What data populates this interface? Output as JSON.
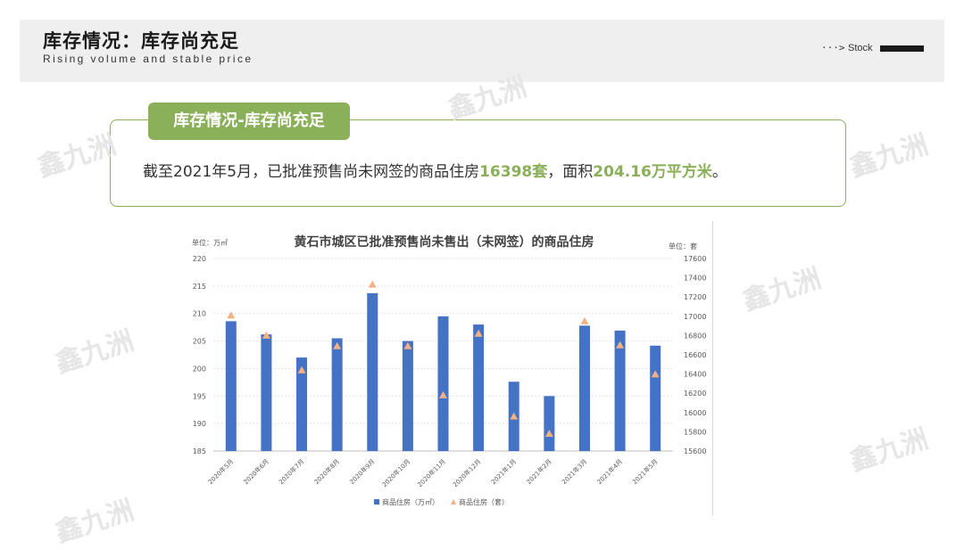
{
  "header": {
    "title": "库存情况：库存尚充足",
    "subtitle": "Rising volume and stable price",
    "arrow": "···>",
    "nav_label": "Stock"
  },
  "info": {
    "tag": "库存情况-库存尚充足",
    "text_prefix": "截至2021年5月，已批准预售尚未网签的商品住房",
    "highlight_units": "16398套",
    "text_middle": "，面积",
    "highlight_area": "204.16万平方米",
    "text_suffix": "。"
  },
  "watermark": "鑫九洲",
  "colors": {
    "accent_green": "#8ab05a",
    "bar_blue": "#4472c4",
    "triangle_orange": "#f4b183"
  },
  "chart_data": {
    "type": "bar",
    "title": "黄石市城区已批准预售尚未售出（未网签）的商品住房",
    "ylabel_left": "单位：万㎡",
    "ylabel_right": "单位：套",
    "categories": [
      "2020年5月",
      "2020年6月",
      "2020年7月",
      "2020年8月",
      "2020年9月",
      "2020年10月",
      "2020年11月",
      "2020年12月",
      "2021年1月",
      "2021年2月",
      "2021年3月",
      "2021年4月",
      "2021年5月"
    ],
    "ylim_left": [
      185,
      220
    ],
    "yticks_left": [
      185,
      190,
      195,
      200,
      205,
      210,
      215,
      220
    ],
    "ylim_right": [
      15600,
      17600
    ],
    "yticks_right": [
      15600,
      15800,
      16000,
      16200,
      16400,
      16600,
      16800,
      17000,
      17200,
      17400,
      17600
    ],
    "grid": true,
    "legend_position": "bottom",
    "series": [
      {
        "name": "商品住房（万㎡）",
        "type": "bar",
        "axis": "left",
        "values": [
          208.6,
          206.2,
          202.0,
          205.5,
          213.7,
          205.0,
          209.5,
          208.0,
          197.6,
          195.0,
          207.8,
          206.9,
          204.16
        ]
      },
      {
        "name": "商品住房（套）",
        "type": "marker",
        "axis": "right",
        "values": [
          17010,
          16800,
          16440,
          16690,
          17330,
          16690,
          16180,
          16820,
          15960,
          15780,
          16950,
          16700,
          16398
        ]
      }
    ]
  }
}
